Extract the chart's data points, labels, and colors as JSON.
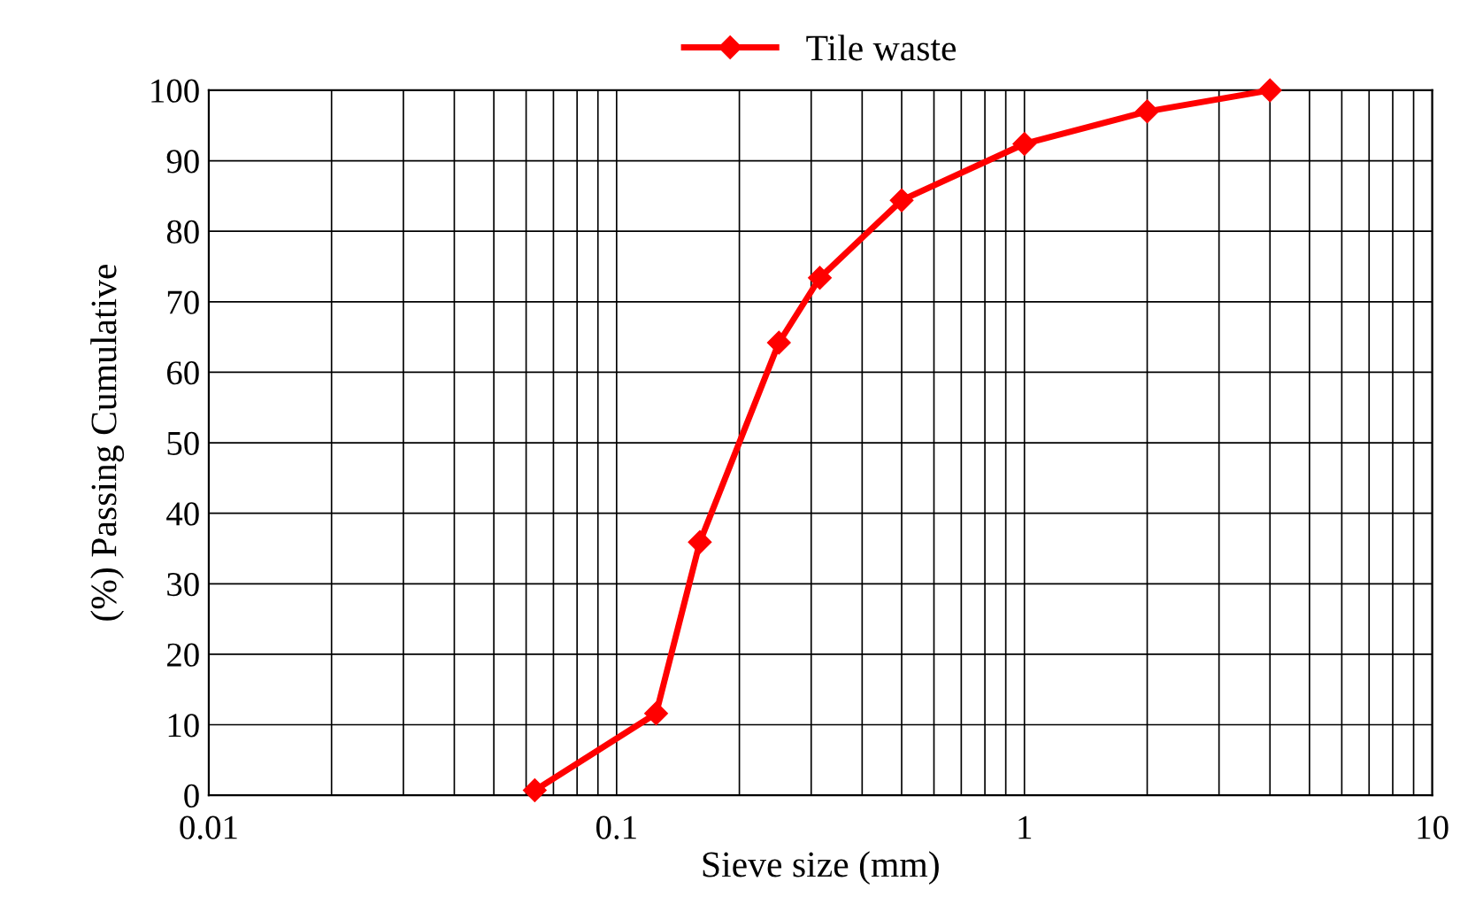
{
  "chart_data": {
    "type": "line",
    "xlabel": "Sieve size (mm)",
    "ylabel": "(%) Passing Cumulative",
    "log": "x",
    "xlim": [
      0.01,
      10
    ],
    "xticks": [
      0.01,
      0.1,
      1,
      10
    ],
    "ylim": [
      0,
      100
    ],
    "yticks": [
      0,
      10,
      20,
      30,
      40,
      50,
      60,
      70,
      80,
      90,
      100
    ],
    "grid": true,
    "legend": "top",
    "marker": "diamond",
    "line_style": "solid",
    "x": [
      0.063,
      0.125,
      0.16,
      0.25,
      0.315,
      0.5,
      1,
      2,
      4
    ],
    "series": [
      {
        "name": "Tile waste",
        "color": "#ff0000",
        "values": [
          0.7,
          11.6,
          35.9,
          64.2,
          73.4,
          84.4,
          92.4,
          97,
          100
        ]
      }
    ]
  }
}
